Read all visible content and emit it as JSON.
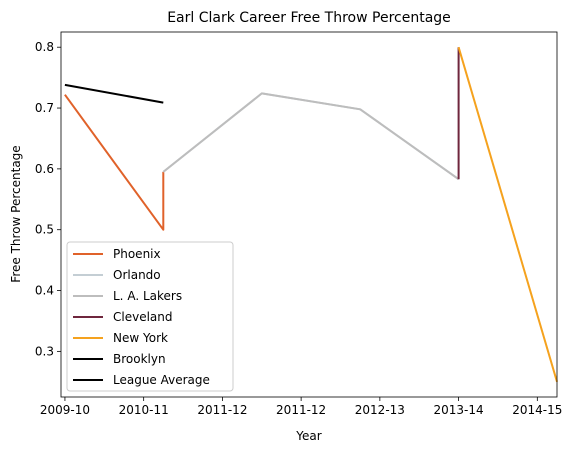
{
  "chart_data": {
    "type": "line",
    "title": "Earl Clark Career Free Throw Percentage",
    "xlabel": "Year",
    "ylabel": "Free Throw Percentage",
    "xlim": [
      -0.05,
      6.25
    ],
    "ylim": [
      0.225,
      0.825
    ],
    "x_ticks": [
      {
        "value": 0,
        "label": "2009-10"
      },
      {
        "value": 1,
        "label": "2010-11"
      },
      {
        "value": 2,
        "label": "2011-12"
      },
      {
        "value": 3,
        "label": "2011-12"
      },
      {
        "value": 4,
        "label": "2012-13"
      },
      {
        "value": 5,
        "label": "2013-14"
      },
      {
        "value": 6,
        "label": "2014-15"
      }
    ],
    "y_ticks": [
      0.3,
      0.4,
      0.5,
      0.6,
      0.7,
      0.8
    ],
    "legend_position": "lower-left",
    "series": [
      {
        "name": "Phoenix",
        "color": "#e0622a",
        "points": [
          [
            0,
            0.722
          ],
          [
            1.25,
            0.5
          ],
          [
            1.25,
            0.595
          ]
        ]
      },
      {
        "name": "Orlando",
        "color": "#c4ced4",
        "points": [
          [
            1.25,
            0.595
          ],
          [
            2.5,
            0.724
          ],
          [
            3.75,
            0.698
          ],
          [
            5,
            0.583
          ]
        ]
      },
      {
        "name": "L. A. Lakers",
        "color": "#bdbdbd",
        "points": [
          [
            1.25,
            0.595
          ],
          [
            2.5,
            0.724
          ],
          [
            3.75,
            0.698
          ],
          [
            5,
            0.583
          ]
        ]
      },
      {
        "name": "Cleveland",
        "color": "#6f263d",
        "points": [
          [
            5,
            0.583
          ],
          [
            5,
            0.8
          ]
        ]
      },
      {
        "name": "New York",
        "color": "#f5a21e",
        "points": [
          [
            5,
            0.8
          ],
          [
            6.25,
            0.25
          ]
        ]
      },
      {
        "name": "Brooklyn",
        "color": "#000000",
        "points": []
      },
      {
        "name": "League Average",
        "color": "#000000",
        "points": [
          [
            0,
            0.738
          ],
          [
            1.25,
            0.709
          ]
        ]
      }
    ]
  }
}
